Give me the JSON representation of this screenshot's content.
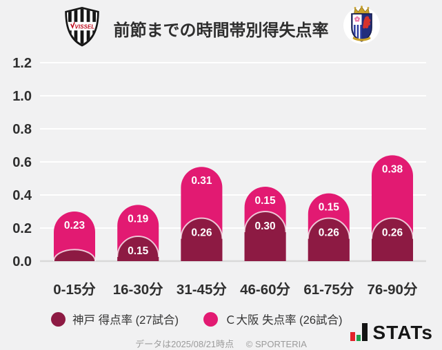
{
  "header": {
    "title": "前節までの時間帯別得失点率",
    "left_logo": "vissel-kobe-crest",
    "left_logo_text": "VISSEL",
    "right_logo": "cerezo-osaka-crest"
  },
  "chart_data": {
    "type": "bar",
    "subtype": "stacked-rounded-top",
    "title": "前節までの時間帯別得失点率",
    "xlabel": "",
    "ylabel": "",
    "categories": [
      "0-15分",
      "16-30分",
      "31-45分",
      "46-60分",
      "61-75分",
      "76-90分"
    ],
    "series": [
      {
        "name": "神戸 得点率 (27試合)",
        "color": "#8d1a43",
        "values": [
          0.07,
          0.15,
          0.26,
          0.3,
          0.26,
          0.26
        ],
        "labels": [
          "",
          "0.15",
          "0.26",
          "0.30",
          "0.26",
          "0.26"
        ]
      },
      {
        "name": "Ｃ大阪 失点率 (26試合)",
        "color": "#e21a72",
        "values": [
          0.23,
          0.19,
          0.31,
          0.15,
          0.15,
          0.38
        ],
        "labels": [
          "0.23",
          "0.19",
          "0.31",
          "0.15",
          "0.15",
          "0.38"
        ]
      }
    ],
    "stacked": true,
    "ylim": [
      0,
      1.2
    ],
    "yticks": [
      "0.0",
      "0.2",
      "0.4",
      "0.6",
      "0.8",
      "1.0",
      "1.2"
    ],
    "grid": true,
    "gridline_color": "#ffffff",
    "baseline_color": "#d9d9d9",
    "legend_position": "bottom"
  },
  "legend": {
    "items": [
      {
        "label": "神戸 得点率 (27試合)",
        "color": "#8d1a43"
      },
      {
        "label": "Ｃ大阪 失点率 (26試合)",
        "color": "#e21a72"
      }
    ]
  },
  "footer": {
    "note": "データは2025/08/21時点",
    "copyright": "© SPORTERIA",
    "brand": "STATs"
  }
}
